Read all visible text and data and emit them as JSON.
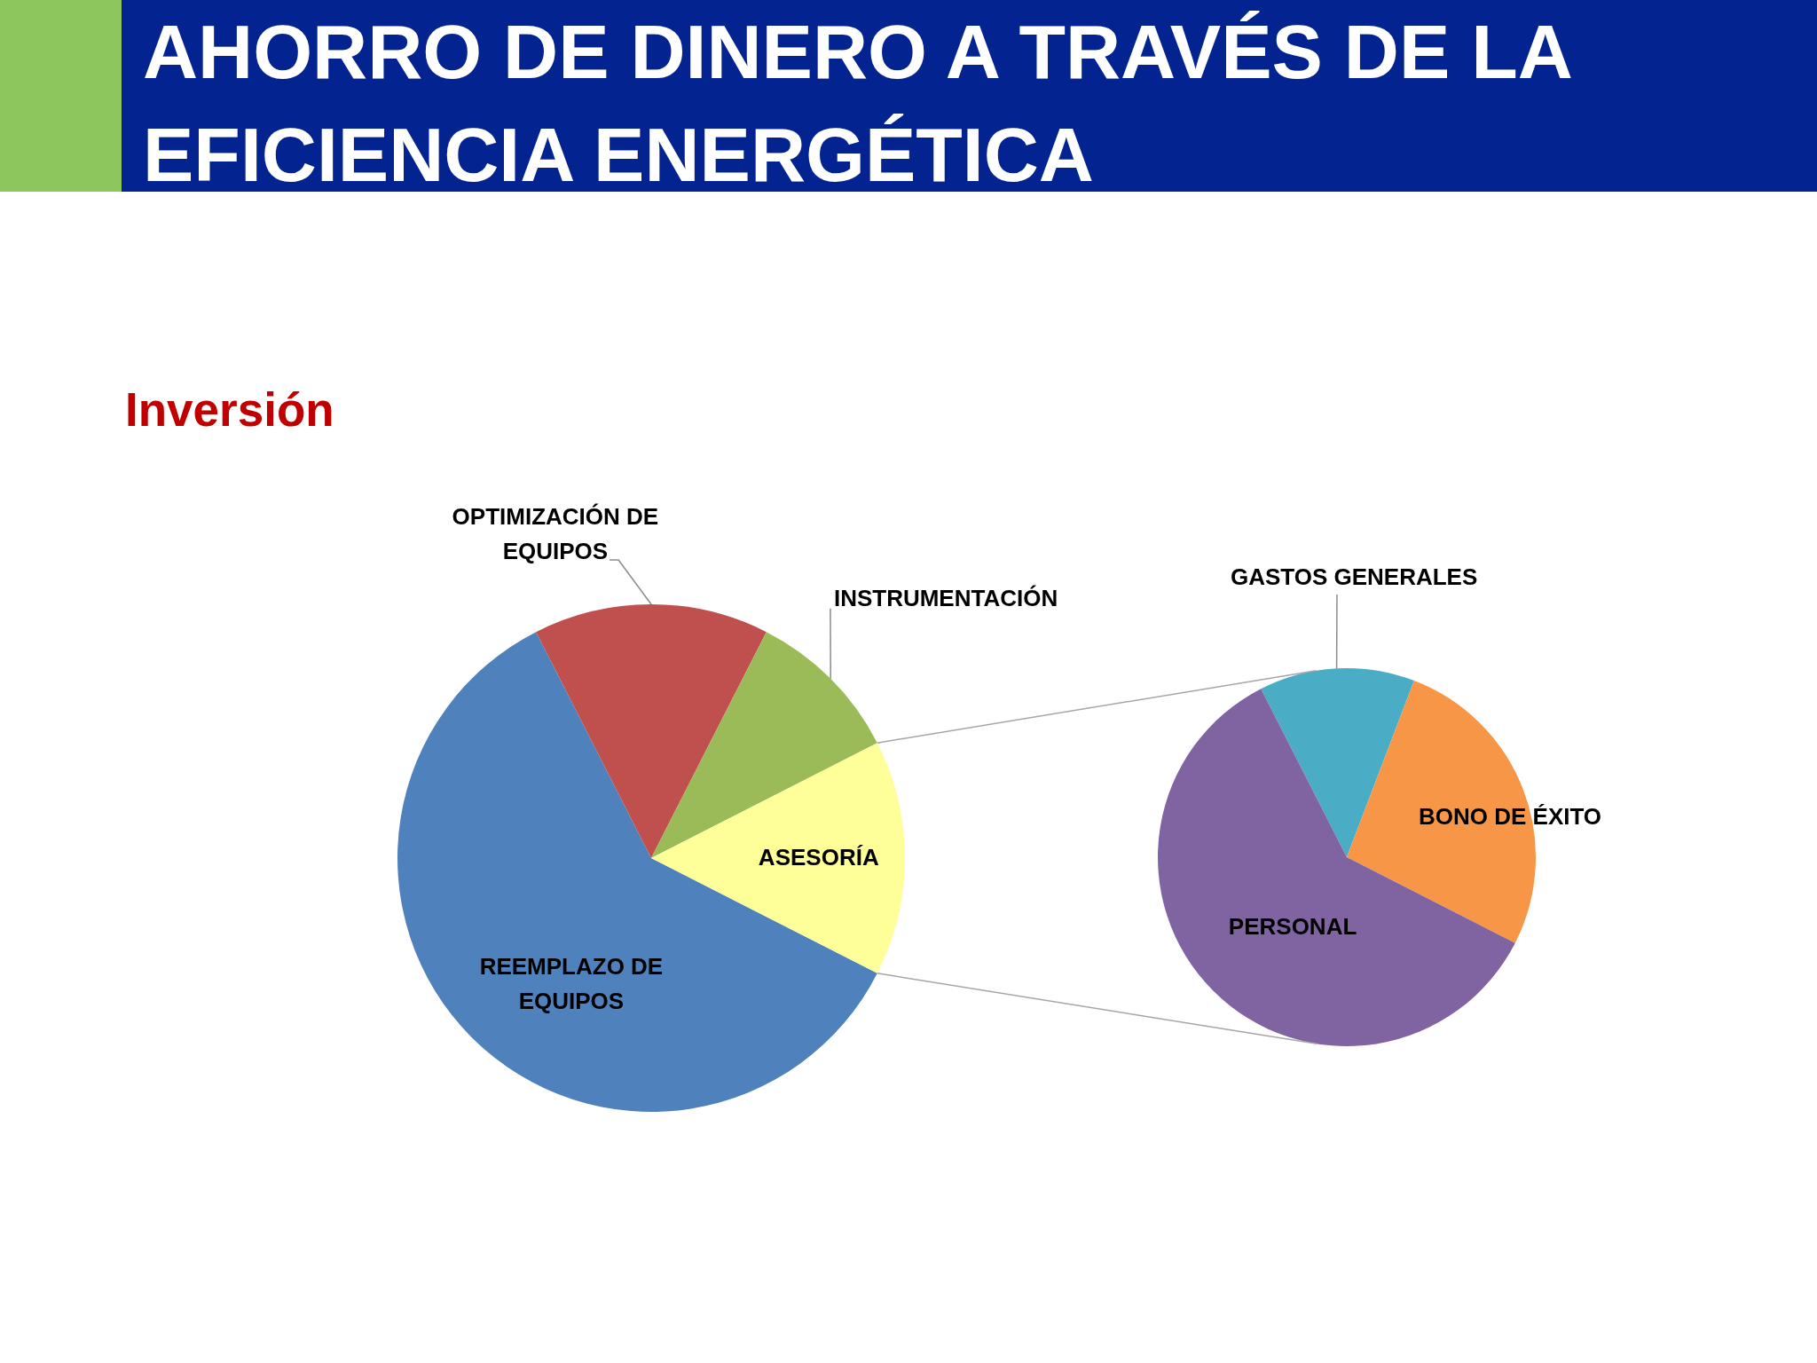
{
  "chart_data": [
    {
      "type": "pie",
      "title": "AHORRO DE DINERO A TRAVÉS DE LA EFICIENCIA ENERGÉTICA",
      "subtitle": "Inversión",
      "categories": [
        "REEMPLAZO DE EQUIPOS",
        "OPTIMIZACIÓN DE EQUIPOS",
        "INSTRUMENTACIÓN",
        "ASESORÍA"
      ],
      "values": [
        60,
        15,
        10,
        15
      ],
      "colors": [
        "#4f81bd",
        "#c0504d",
        "#9bbb59",
        "#ffff99"
      ]
    },
    {
      "type": "pie",
      "categories": [
        "GASTOS GENERALES",
        "BONO DE ÉXITO",
        "PERSONAL"
      ],
      "values": [
        13.3,
        26.7,
        60
      ],
      "colors": [
        "#4bacc6",
        "#f79646",
        "#8064a2"
      ]
    }
  ]
}
